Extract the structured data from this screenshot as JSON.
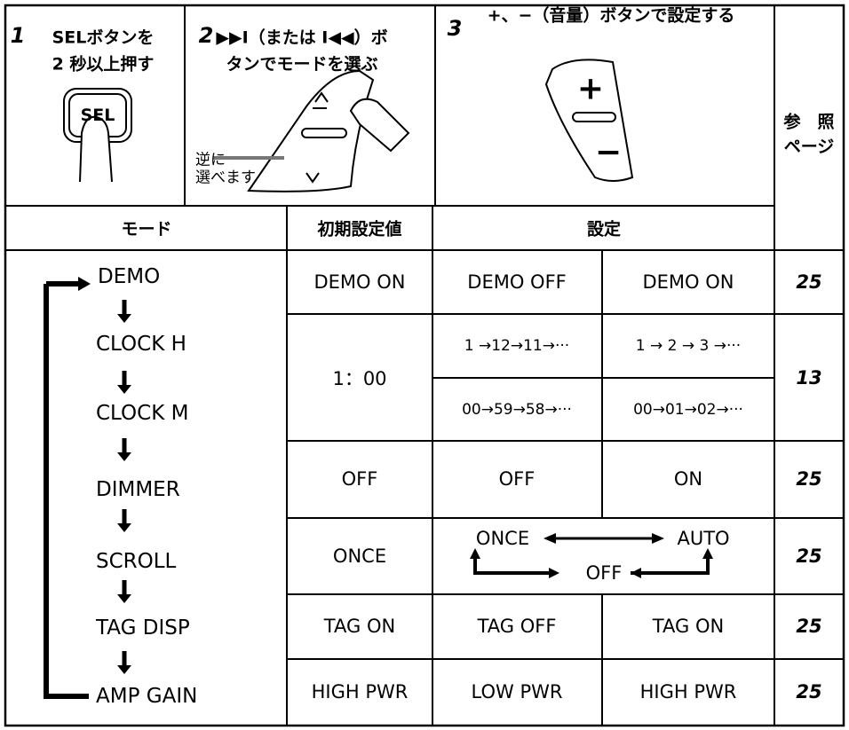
{
  "steps": [
    {
      "number": "1",
      "lines": [
        "SELボタンを",
        "2 秒以上押す"
      ]
    },
    {
      "number": "2",
      "lines": [
        "▶▶I（または I◀◀）ボ",
        "タンでモードを選ぶ"
      ]
    },
    {
      "number": "3",
      "lines": [
        "+、−（音量）ボタンで設定する"
      ]
    }
  ],
  "illustration": {
    "sel_button": "SEL",
    "reverse_note": [
      "逆に",
      "選べます"
    ],
    "plus": "+",
    "minus": "−"
  },
  "reference_header": [
    "参　照",
    "ページ"
  ],
  "columns": {
    "mode": "モード",
    "default": "初期設定値",
    "setting": "設定"
  },
  "modes": [
    "DEMO",
    "CLOCK H",
    "CLOCK M",
    "DIMMER",
    "SCROLL",
    "TAG DISP",
    "AMP GAIN"
  ],
  "rows": [
    {
      "default": "DEMO ON",
      "settings": [
        "DEMO OFF",
        "DEMO ON"
      ],
      "page": "25"
    },
    {
      "default": "1：00",
      "settings": [
        "1 →12→11→···",
        "1 → 2 → 3 →···",
        "00→59→58→···",
        "00→01→02→···"
      ],
      "page": "13"
    },
    {
      "default": "OFF",
      "settings": [
        "OFF",
        "ON"
      ],
      "page": "25"
    },
    {
      "default": "ONCE",
      "settings": [
        "ONCE",
        "AUTO",
        "OFF"
      ],
      "page": "25"
    },
    {
      "default": "TAG ON",
      "settings": [
        "TAG OFF",
        "TAG ON"
      ],
      "page": "25"
    },
    {
      "default": "HIGH PWR",
      "settings": [
        "LOW PWR",
        "HIGH PWR"
      ],
      "page": "25"
    }
  ]
}
